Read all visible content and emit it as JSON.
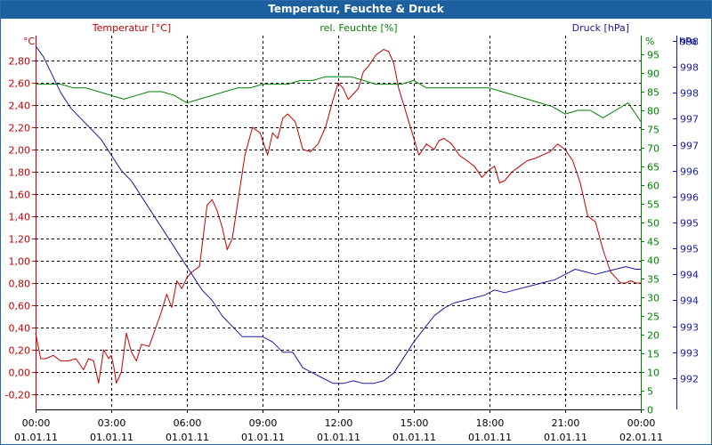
{
  "chart_data": {
    "type": "line",
    "title": "Temperatur, Feuchte & Druck",
    "colors": {
      "temperature": "#c00000",
      "humidity": "#008000",
      "pressure": "#1a1aa0",
      "grid": "#000000",
      "titlebar": "#1c5f9e"
    },
    "x": {
      "range": [
        0,
        24
      ],
      "ticks": [
        {
          "h": 0,
          "time": "00:00",
          "date": "01.01.11"
        },
        {
          "h": 3,
          "time": "03:00",
          "date": "01.01.11"
        },
        {
          "h": 6,
          "time": "06:00",
          "date": "01.01.11"
        },
        {
          "h": 9,
          "time": "09:00",
          "date": "01.01.11"
        },
        {
          "h": 12,
          "time": "12:00",
          "date": "01.01.11"
        },
        {
          "h": 15,
          "time": "15:00",
          "date": "01.01.11"
        },
        {
          "h": 18,
          "time": "18:00",
          "date": "01.01.11"
        },
        {
          "h": 21,
          "time": "21:00",
          "date": "01.01.11"
        },
        {
          "h": 24,
          "time": "00:00",
          "date": "02.01.11"
        }
      ]
    },
    "axes": {
      "temperature": {
        "label": "Temperatur [°C]",
        "unit": "°C",
        "range": [
          -0.336,
          3.024
        ],
        "tick_values": [
          -0.2,
          0,
          0.2,
          0.4,
          0.6,
          0.8,
          1.0,
          1.2,
          1.4,
          1.6,
          1.8,
          2.0,
          2.2,
          2.4,
          2.6,
          2.8
        ],
        "tick_labels": [
          "-0,20",
          "0,00",
          "0,20",
          "0,40",
          "0,60",
          "0,80",
          "1,00",
          "1,20",
          "1,40",
          "1,60",
          "1,80",
          "2,00",
          "2,20",
          "2,40",
          "2,60",
          "2,80"
        ]
      },
      "humidity": {
        "label": "rel. Feuchte [%]",
        "unit": "%",
        "range": [
          0,
          100
        ],
        "tick_values": [
          0,
          5,
          10,
          15,
          20,
          25,
          30,
          35,
          40,
          45,
          50,
          55,
          60,
          65,
          70,
          75,
          80,
          85,
          90,
          95
        ],
        "tick_labels": [
          "0",
          "5",
          "10",
          "15",
          "20",
          "25",
          "30",
          "35",
          "40",
          "45",
          "50",
          "55",
          "60",
          "65",
          "70",
          "75",
          "80",
          "85",
          "90",
          "95"
        ]
      },
      "pressure": {
        "label": "Druck [hPa]",
        "unit": "hPa",
        "range": [
          991.4,
          998.6
        ],
        "tick_values": [
          992.0,
          992.5,
          993.0,
          993.5,
          994.0,
          994.5,
          995.0,
          995.5,
          996.0,
          996.5,
          997.0,
          997.5,
          998.0,
          998.5
        ],
        "tick_labels": [
          "992",
          "993",
          "993",
          "994",
          "994",
          "995",
          "995",
          "996",
          "996",
          "997",
          "997",
          "998",
          "998",
          "998"
        ]
      }
    },
    "series": [
      {
        "name": "Temperatur [°C]",
        "axis": "temperature",
        "x": [
          0,
          0.2,
          0.4,
          0.7,
          1.0,
          1.3,
          1.6,
          1.9,
          2.1,
          2.3,
          2.5,
          2.7,
          2.9,
          3.0,
          3.1,
          3.2,
          3.4,
          3.6,
          3.8,
          4.0,
          4.2,
          4.5,
          4.8,
          5.0,
          5.2,
          5.4,
          5.6,
          5.8,
          6.0,
          6.2,
          6.5,
          6.8,
          7.0,
          7.2,
          7.4,
          7.6,
          7.8,
          8.0,
          8.3,
          8.6,
          8.9,
          9.2,
          9.4,
          9.6,
          9.8,
          10.0,
          10.3,
          10.6,
          10.9,
          11.2,
          11.5,
          11.8,
          12.0,
          12.2,
          12.4,
          12.6,
          12.8,
          13.0,
          13.2,
          13.5,
          13.8,
          14.0,
          14.2,
          14.4,
          14.6,
          14.8,
          15.0,
          15.2,
          15.5,
          15.8,
          16.0,
          16.2,
          16.5,
          16.8,
          17.1,
          17.4,
          17.7,
          18.0,
          18.2,
          18.4,
          18.6,
          18.9,
          19.2,
          19.5,
          19.8,
          20.1,
          20.4,
          20.7,
          21.0,
          21.3,
          21.6,
          21.9,
          22.2,
          22.5,
          22.8,
          23.0,
          23.2,
          23.4,
          23.6,
          23.8,
          24.0
        ],
        "values": [
          0.35,
          0.12,
          0.12,
          0.15,
          0.1,
          0.1,
          0.12,
          0.02,
          0.12,
          0.1,
          -0.1,
          0.2,
          0.12,
          0.15,
          0.05,
          -0.1,
          0.0,
          0.35,
          0.18,
          0.1,
          0.25,
          0.23,
          0.42,
          0.55,
          0.7,
          0.58,
          0.82,
          0.75,
          0.85,
          0.9,
          0.95,
          1.5,
          1.55,
          1.45,
          1.3,
          1.1,
          1.2,
          1.5,
          1.95,
          2.2,
          2.15,
          1.95,
          2.15,
          2.1,
          2.28,
          2.32,
          2.25,
          2.0,
          1.98,
          2.05,
          2.2,
          2.45,
          2.6,
          2.55,
          2.45,
          2.5,
          2.55,
          2.7,
          2.75,
          2.85,
          2.9,
          2.88,
          2.78,
          2.55,
          2.4,
          2.25,
          2.1,
          1.95,
          2.05,
          2.0,
          2.08,
          2.1,
          2.05,
          1.95,
          1.9,
          1.85,
          1.75,
          1.82,
          1.85,
          1.7,
          1.72,
          1.8,
          1.85,
          1.9,
          1.92,
          1.95,
          1.98,
          2.05,
          2.0,
          1.9,
          1.7,
          1.4,
          1.35,
          1.1,
          0.9,
          0.85,
          0.8,
          0.8,
          0.82,
          0.8,
          0.8
        ]
      },
      {
        "name": "rel. Feuchte [%]",
        "axis": "humidity",
        "x": [
          0,
          0.5,
          1.0,
          1.5,
          2.0,
          2.5,
          3.0,
          3.5,
          4.0,
          4.5,
          5.0,
          5.5,
          6.0,
          6.5,
          7.0,
          7.5,
          8.0,
          8.5,
          9.0,
          9.5,
          10.0,
          10.5,
          11.0,
          11.5,
          12.0,
          12.5,
          13.0,
          13.5,
          14.0,
          14.5,
          15.0,
          15.5,
          16.0,
          16.5,
          17.0,
          17.5,
          18.0,
          18.5,
          19.0,
          19.5,
          20.0,
          20.5,
          21.0,
          21.5,
          22.0,
          22.5,
          23.0,
          23.5,
          24.0
        ],
        "values": [
          87,
          87,
          87,
          86,
          86,
          85,
          84,
          83,
          84,
          85,
          85,
          84,
          82,
          83,
          84,
          85,
          86,
          86,
          87,
          87,
          87,
          88,
          88,
          89,
          89,
          89,
          88,
          87,
          87,
          87,
          88,
          86,
          86,
          86,
          86,
          86,
          86,
          85,
          84,
          83,
          82,
          81,
          79,
          80,
          80,
          78,
          80,
          82,
          77
        ]
      },
      {
        "name": "Druck [hPa]",
        "axis": "pressure",
        "x": [
          0,
          0.3,
          0.6,
          1.0,
          1.4,
          1.8,
          2.2,
          2.6,
          3.0,
          3.4,
          3.8,
          4.2,
          4.6,
          5.0,
          5.4,
          5.8,
          6.2,
          6.6,
          7.0,
          7.4,
          7.8,
          8.2,
          8.6,
          9.0,
          9.4,
          9.8,
          10.2,
          10.6,
          11.0,
          11.4,
          11.8,
          12.2,
          12.6,
          13.0,
          13.4,
          13.8,
          14.2,
          14.6,
          15.0,
          15.4,
          15.8,
          16.2,
          16.6,
          17.0,
          17.4,
          17.8,
          18.2,
          18.6,
          19.0,
          19.4,
          19.8,
          20.2,
          20.6,
          21.0,
          21.4,
          21.8,
          22.2,
          22.6,
          23.0,
          23.4,
          23.8,
          24.0
        ],
        "values": [
          998.4,
          998.2,
          997.9,
          997.5,
          997.2,
          997.0,
          996.8,
          996.6,
          996.3,
          996.0,
          995.8,
          995.5,
          995.2,
          994.9,
          994.6,
          994.3,
          994.0,
          993.7,
          993.5,
          993.2,
          993.0,
          992.8,
          992.8,
          992.8,
          992.7,
          992.5,
          992.5,
          992.2,
          992.1,
          992.0,
          991.9,
          991.9,
          991.95,
          991.9,
          991.9,
          991.95,
          992.1,
          992.4,
          992.7,
          992.95,
          993.2,
          993.35,
          993.45,
          993.5,
          993.55,
          993.6,
          993.7,
          993.65,
          993.7,
          993.75,
          993.8,
          993.85,
          993.9,
          994.0,
          994.1,
          994.05,
          994.0,
          994.05,
          994.1,
          994.15,
          994.1,
          994.1
        ]
      }
    ]
  }
}
